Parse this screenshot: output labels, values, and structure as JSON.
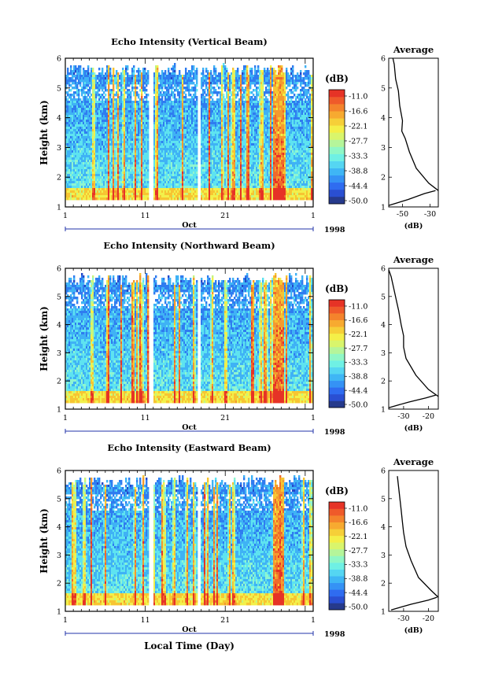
{
  "chart_data": [
    {
      "type": "heatmap",
      "title": "Echo Intensity (Vertical Beam)",
      "ylabel": "Height (km)",
      "xlabel": "",
      "ylim": [
        1,
        6
      ],
      "yticks": [
        "1",
        "2",
        "3",
        "4",
        "5",
        "6"
      ],
      "xticks": [
        "1",
        "11",
        "21",
        "1"
      ],
      "month_label": "Oct",
      "year_label": "1998",
      "colorbar": {
        "unit": "(dB)",
        "levels": [
          "-11.0",
          "-16.6",
          "-22.1",
          "-27.7",
          "-33.3",
          "-38.8",
          "-44.4",
          "-50.0"
        ]
      },
      "profile": {
        "title": "Average",
        "xlabel": "(dB)",
        "xticks": [
          "-50",
          "-30"
        ],
        "xlim": [
          -60,
          -24
        ],
        "yticks": [
          "1",
          "2",
          "3",
          "4",
          "5",
          "6"
        ],
        "points": [
          [
            -24,
            1.55
          ],
          [
            -31,
            1.8
          ],
          [
            -40,
            2.3
          ],
          [
            -45,
            2.85
          ],
          [
            -48,
            3.3
          ],
          [
            -50.5,
            3.55
          ],
          [
            -50,
            3.9
          ],
          [
            -52,
            4.4
          ],
          [
            -53,
            4.9
          ],
          [
            -55,
            5.3
          ],
          [
            -56,
            5.8
          ],
          [
            -57,
            6.0
          ]
        ],
        "low_branch": [
          [
            -60,
            1.05
          ],
          [
            -46,
            1.25
          ],
          [
            -34,
            1.45
          ],
          [
            -26,
            1.55
          ]
        ]
      }
    },
    {
      "type": "heatmap",
      "title": "Echo Intensity (Northward Beam)",
      "ylabel": "Height (km)",
      "xlabel": "",
      "ylim": [
        1,
        6
      ],
      "yticks": [
        "1",
        "2",
        "3",
        "4",
        "5",
        "6"
      ],
      "xticks": [
        "1",
        "11",
        "21",
        "1"
      ],
      "month_label": "Oct",
      "year_label": "1998",
      "colorbar": {
        "unit": "(dB)",
        "levels": [
          "-11.0",
          "-16.6",
          "-22.1",
          "-27.7",
          "-33.3",
          "-38.8",
          "-44.4",
          "-50.0"
        ]
      },
      "profile": {
        "title": "Average",
        "xlabel": "(dB)",
        "xticks": [
          "-30",
          "-20"
        ],
        "xlim": [
          -36,
          -16
        ],
        "yticks": [
          "1",
          "2",
          "3",
          "4",
          "5",
          "6"
        ],
        "points": [
          [
            -16,
            1.45
          ],
          [
            -20,
            1.7
          ],
          [
            -25,
            2.2
          ],
          [
            -29,
            2.8
          ],
          [
            -30,
            3.2
          ],
          [
            -30,
            3.6
          ],
          [
            -31,
            4.0
          ],
          [
            -32,
            4.5
          ],
          [
            -33,
            4.9
          ],
          [
            -34,
            5.3
          ],
          [
            -35,
            5.7
          ],
          [
            -36,
            5.95
          ]
        ],
        "low_branch": [
          [
            -36,
            1.05
          ],
          [
            -28,
            1.25
          ],
          [
            -21,
            1.4
          ],
          [
            -17,
            1.5
          ]
        ]
      }
    },
    {
      "type": "heatmap",
      "title": "Echo Intensity (Eastward Beam)",
      "ylabel": "Height (km)",
      "xlabel": "Local Time (Day)",
      "ylim": [
        1,
        6
      ],
      "yticks": [
        "1",
        "2",
        "3",
        "4",
        "5",
        "6"
      ],
      "xticks": [
        "1",
        "11",
        "21",
        "1"
      ],
      "month_label": "Oct",
      "year_label": "1998",
      "colorbar": {
        "unit": "(dB)",
        "levels": [
          "-11.0",
          "-16.6",
          "-22.1",
          "-27.7",
          "-33.3",
          "-38.8",
          "-44.4",
          "-50.0"
        ]
      },
      "profile": {
        "title": "Average",
        "xlabel": "(dB)",
        "xticks": [
          "-30",
          "-20"
        ],
        "xlim": [
          -36,
          -16
        ],
        "yticks": [
          "1",
          "2",
          "3",
          "4",
          "5",
          "6"
        ],
        "points": [
          [
            -16,
            1.5
          ],
          [
            -19,
            1.75
          ],
          [
            -24,
            2.2
          ],
          [
            -27,
            2.8
          ],
          [
            -29,
            3.3
          ],
          [
            -30,
            3.8
          ],
          [
            -30.5,
            4.2
          ],
          [
            -31,
            4.6
          ],
          [
            -31.5,
            5.0
          ],
          [
            -32,
            5.4
          ],
          [
            -32.5,
            5.8
          ]
        ],
        "low_branch": [
          [
            -35,
            1.05
          ],
          [
            -27,
            1.25
          ],
          [
            -20,
            1.4
          ],
          [
            -16.5,
            1.5
          ]
        ]
      }
    }
  ]
}
